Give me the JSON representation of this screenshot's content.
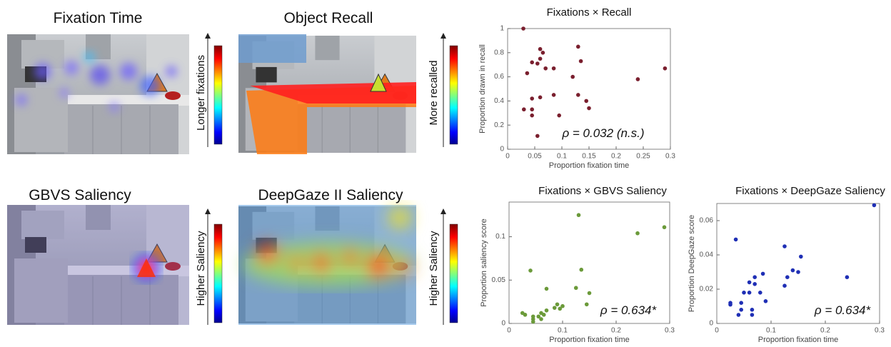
{
  "panels": [
    {
      "title": "Fixation Time",
      "colorbar_label": "Longer fixations"
    },
    {
      "title": "Object Recall",
      "colorbar_label": "More recalled"
    },
    {
      "title": "GBVS Saliency",
      "colorbar_label": "Higher Saliency"
    },
    {
      "title": "DeepGaze II Saliency",
      "colorbar_label": "Higher Saliency"
    }
  ],
  "chart_data": [
    {
      "type": "scatter",
      "title": "Fixations × Recall",
      "xlabel": "Proportion fixation time",
      "ylabel": "Proportion drawn in recall",
      "annotation": "ρ = 0.032 (n.s.)",
      "color": "#7a1f2e",
      "x": [
        0.029,
        0.036,
        0.045,
        0.055,
        0.06,
        0.065,
        0.07,
        0.06,
        0.085,
        0.13,
        0.135,
        0.12,
        0.24,
        0.29,
        0.045,
        0.045,
        0.045,
        0.03,
        0.06,
        0.085,
        0.095,
        0.13,
        0.145,
        0.15,
        0.055
      ],
      "values": [
        1.0,
        0.63,
        0.72,
        0.71,
        0.83,
        0.8,
        0.67,
        0.75,
        0.67,
        0.85,
        0.73,
        0.6,
        0.58,
        0.67,
        0.42,
        0.33,
        0.28,
        0.33,
        0.43,
        0.45,
        0.28,
        0.45,
        0.4,
        0.34,
        0.11
      ],
      "xlim": [
        0,
        0.3
      ],
      "xticks": [
        0,
        0.05,
        0.1,
        0.15,
        0.2,
        0.25,
        0.3
      ],
      "ylim": [
        0,
        1
      ],
      "yticks": [
        0,
        0.2,
        0.4,
        0.6,
        0.8,
        1
      ]
    },
    {
      "type": "scatter",
      "title": "Fixations × GBVS Saliency",
      "xlabel": "Proportion fixation time",
      "ylabel": "Proportion saliency score",
      "annotation": "ρ = 0.634*",
      "color": "#6b9a3a",
      "x": [
        0.13,
        0.24,
        0.29,
        0.135,
        0.15,
        0.125,
        0.145,
        0.04,
        0.07,
        0.1,
        0.09,
        0.085,
        0.06,
        0.065,
        0.07,
        0.025,
        0.03,
        0.045,
        0.045,
        0.055,
        0.06,
        0.095,
        0.045
      ],
      "values": [
        0.125,
        0.104,
        0.111,
        0.062,
        0.035,
        0.041,
        0.022,
        0.061,
        0.04,
        0.02,
        0.022,
        0.018,
        0.012,
        0.01,
        0.015,
        0.012,
        0.01,
        0.005,
        0.002,
        0.008,
        0.005,
        0.017,
        0.008
      ],
      "xlim": [
        0,
        0.3
      ],
      "xticks": [
        0,
        0.1,
        0.2,
        0.3
      ],
      "ylim": [
        0,
        0.14
      ],
      "yticks": [
        0,
        0.05,
        0.1
      ]
    },
    {
      "type": "scatter",
      "title": "Fixations × DeepGaze Saliency",
      "xlabel": "Proportion fixation time",
      "ylabel": "Proportion DeepGaze score",
      "annotation": "ρ = 0.634*",
      "color": "#1f2fb5",
      "x": [
        0.29,
        0.035,
        0.125,
        0.155,
        0.14,
        0.15,
        0.13,
        0.24,
        0.125,
        0.085,
        0.07,
        0.07,
        0.06,
        0.08,
        0.05,
        0.06,
        0.025,
        0.025,
        0.045,
        0.09,
        0.045,
        0.065,
        0.04,
        0.065
      ],
      "values": [
        0.069,
        0.049,
        0.045,
        0.039,
        0.031,
        0.03,
        0.027,
        0.027,
        0.022,
        0.029,
        0.027,
        0.023,
        0.024,
        0.018,
        0.018,
        0.018,
        0.012,
        0.011,
        0.012,
        0.013,
        0.008,
        0.008,
        0.005,
        0.005
      ],
      "xlim": [
        0,
        0.3
      ],
      "xticks": [
        0,
        0.1,
        0.2,
        0.3
      ],
      "ylim": [
        0,
        0.07
      ],
      "yticks": [
        0,
        0.02,
        0.04,
        0.06
      ]
    }
  ]
}
